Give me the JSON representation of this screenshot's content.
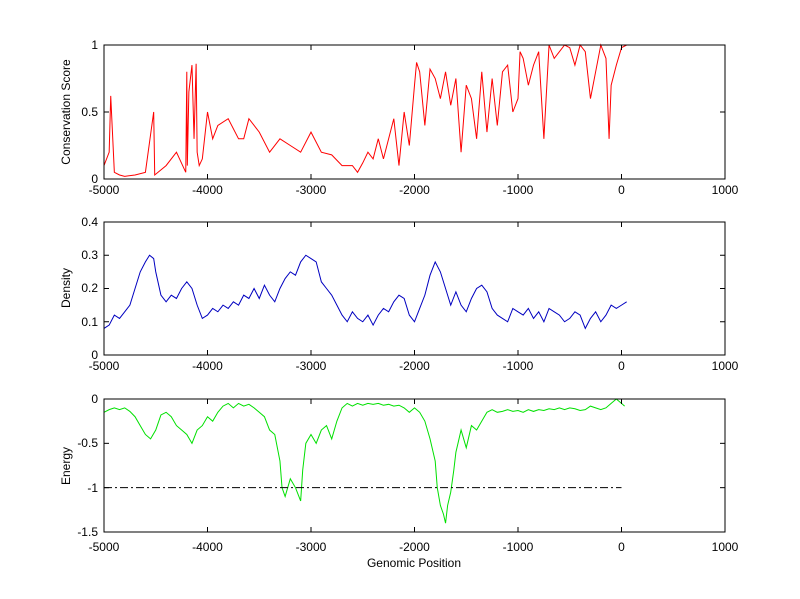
{
  "chart_data": [
    {
      "type": "line",
      "title": "",
      "xlabel": "",
      "ylabel": "Conservation Score",
      "xlim": [
        -5000,
        1000
      ],
      "ylim": [
        0,
        1
      ],
      "xticks": [
        -5000,
        -4000,
        -3000,
        -2000,
        -1000,
        0,
        1000
      ],
      "yticks": [
        0,
        0.5,
        1
      ],
      "xtick_labels": [
        "-5000",
        "-4000",
        "-3000",
        "-2000",
        "-1000",
        "0",
        "1000"
      ],
      "ytick_labels": [
        "0",
        "0.5",
        "1"
      ],
      "grid": false,
      "series": [
        {
          "color": "#ff0000",
          "x": [
            -5000,
            -4950,
            -4935,
            -4900,
            -4850,
            -4800,
            -4700,
            -4600,
            -4520,
            -4510,
            -4400,
            -4300,
            -4210,
            -4200,
            -4195,
            -4180,
            -4150,
            -4130,
            -4110,
            -4100,
            -4080,
            -4050,
            -4000,
            -3950,
            -3900,
            -3800,
            -3700,
            -3650,
            -3600,
            -3500,
            -3400,
            -3300,
            -3200,
            -3100,
            -3000,
            -2900,
            -2800,
            -2700,
            -2600,
            -2550,
            -2500,
            -2450,
            -2400,
            -2350,
            -2300,
            -2250,
            -2200,
            -2150,
            -2100,
            -2050,
            -2000,
            -1980,
            -1950,
            -1900,
            -1850,
            -1800,
            -1750,
            -1700,
            -1650,
            -1600,
            -1550,
            -1500,
            -1450,
            -1400,
            -1350,
            -1300,
            -1250,
            -1200,
            -1150,
            -1100,
            -1050,
            -1000,
            -980,
            -950,
            -900,
            -850,
            -800,
            -750,
            -700,
            -650,
            -600,
            -550,
            -500,
            -450,
            -400,
            -350,
            -300,
            -250,
            -200,
            -150,
            -120,
            -100,
            -50,
            0,
            50
          ],
          "y": [
            0.1,
            0.2,
            0.62,
            0.05,
            0.03,
            0.02,
            0.03,
            0.05,
            0.5,
            0.03,
            0.1,
            0.2,
            0.05,
            0.8,
            0.1,
            0.65,
            0.85,
            0.3,
            0.86,
            0.2,
            0.1,
            0.15,
            0.5,
            0.3,
            0.4,
            0.45,
            0.3,
            0.3,
            0.45,
            0.35,
            0.2,
            0.3,
            0.25,
            0.2,
            0.35,
            0.2,
            0.18,
            0.1,
            0.1,
            0.05,
            0.12,
            0.2,
            0.15,
            0.3,
            0.15,
            0.3,
            0.45,
            0.1,
            0.5,
            0.25,
            0.7,
            0.87,
            0.8,
            0.4,
            0.82,
            0.75,
            0.6,
            0.8,
            0.55,
            0.75,
            0.2,
            0.7,
            0.6,
            0.3,
            0.8,
            0.35,
            0.75,
            0.4,
            0.8,
            0.85,
            0.5,
            0.6,
            0.95,
            0.9,
            0.7,
            0.85,
            0.95,
            0.3,
            1.0,
            0.9,
            0.95,
            1.0,
            0.98,
            0.85,
            1.0,
            0.95,
            0.6,
            0.8,
            1.0,
            0.9,
            0.3,
            0.7,
            0.85,
            0.98,
            1.0
          ]
        }
      ]
    },
    {
      "type": "line",
      "title": "",
      "xlabel": "",
      "ylabel": "Density",
      "xlim": [
        -5000,
        1000
      ],
      "ylim": [
        0,
        0.4
      ],
      "xticks": [
        -5000,
        -4000,
        -3000,
        -2000,
        -1000,
        0,
        1000
      ],
      "yticks": [
        0,
        0.1,
        0.2,
        0.3,
        0.4
      ],
      "xtick_labels": [
        "-5000",
        "-4000",
        "-3000",
        "-2000",
        "-1000",
        "0",
        "1000"
      ],
      "ytick_labels": [
        "0",
        "0.1",
        "0.2",
        "0.3",
        "0.4"
      ],
      "grid": false,
      "series": [
        {
          "color": "#0000c0",
          "x": [
            -5000,
            -4950,
            -4900,
            -4850,
            -4800,
            -4750,
            -4700,
            -4650,
            -4600,
            -4560,
            -4520,
            -4500,
            -4450,
            -4400,
            -4350,
            -4300,
            -4250,
            -4200,
            -4150,
            -4100,
            -4050,
            -4000,
            -3950,
            -3900,
            -3850,
            -3800,
            -3750,
            -3700,
            -3650,
            -3600,
            -3550,
            -3500,
            -3450,
            -3400,
            -3350,
            -3300,
            -3250,
            -3200,
            -3150,
            -3100,
            -3050,
            -3000,
            -2950,
            -2900,
            -2850,
            -2800,
            -2750,
            -2700,
            -2650,
            -2600,
            -2550,
            -2500,
            -2450,
            -2400,
            -2350,
            -2300,
            -2250,
            -2200,
            -2150,
            -2100,
            -2050,
            -2000,
            -1950,
            -1900,
            -1850,
            -1800,
            -1750,
            -1700,
            -1650,
            -1600,
            -1550,
            -1500,
            -1450,
            -1400,
            -1350,
            -1300,
            -1250,
            -1200,
            -1150,
            -1100,
            -1050,
            -1000,
            -950,
            -900,
            -850,
            -800,
            -750,
            -700,
            -650,
            -600,
            -550,
            -500,
            -450,
            -400,
            -350,
            -300,
            -250,
            -200,
            -150,
            -100,
            -50,
            0,
            50
          ],
          "y": [
            0.08,
            0.09,
            0.12,
            0.11,
            0.13,
            0.15,
            0.2,
            0.25,
            0.28,
            0.3,
            0.29,
            0.25,
            0.18,
            0.16,
            0.18,
            0.17,
            0.2,
            0.22,
            0.2,
            0.15,
            0.11,
            0.12,
            0.14,
            0.13,
            0.15,
            0.14,
            0.16,
            0.15,
            0.18,
            0.17,
            0.2,
            0.17,
            0.21,
            0.18,
            0.16,
            0.2,
            0.23,
            0.25,
            0.24,
            0.28,
            0.3,
            0.29,
            0.28,
            0.22,
            0.2,
            0.18,
            0.15,
            0.12,
            0.1,
            0.13,
            0.11,
            0.1,
            0.12,
            0.09,
            0.12,
            0.14,
            0.13,
            0.16,
            0.18,
            0.17,
            0.12,
            0.1,
            0.14,
            0.18,
            0.24,
            0.28,
            0.25,
            0.2,
            0.15,
            0.19,
            0.15,
            0.13,
            0.17,
            0.2,
            0.21,
            0.19,
            0.14,
            0.12,
            0.11,
            0.1,
            0.14,
            0.13,
            0.12,
            0.14,
            0.11,
            0.13,
            0.1,
            0.14,
            0.13,
            0.12,
            0.1,
            0.11,
            0.13,
            0.12,
            0.08,
            0.11,
            0.13,
            0.1,
            0.12,
            0.15,
            0.14,
            0.15,
            0.16
          ]
        }
      ]
    },
    {
      "type": "line",
      "title": "",
      "xlabel": "Genomic Position",
      "ylabel": "Energy",
      "xlim": [
        -5000,
        1000
      ],
      "ylim": [
        -1.5,
        0
      ],
      "xticks": [
        -5000,
        -4000,
        -3000,
        -2000,
        -1000,
        0,
        1000
      ],
      "yticks": [
        -1.5,
        -1,
        -0.5,
        0
      ],
      "xtick_labels": [
        "-5000",
        "-4000",
        "-3000",
        "-2000",
        "-1000",
        "0",
        "1000"
      ],
      "ytick_labels": [
        "-1.5",
        "-1",
        "-0.5",
        "0"
      ],
      "grid": false,
      "series": [
        {
          "color": "#00e000",
          "x": [
            -5000,
            -4950,
            -4900,
            -4850,
            -4800,
            -4750,
            -4700,
            -4650,
            -4600,
            -4550,
            -4500,
            -4450,
            -4400,
            -4350,
            -4300,
            -4250,
            -4200,
            -4150,
            -4100,
            -4050,
            -4000,
            -3950,
            -3900,
            -3850,
            -3800,
            -3750,
            -3700,
            -3650,
            -3600,
            -3550,
            -3500,
            -3450,
            -3400,
            -3350,
            -3300,
            -3280,
            -3250,
            -3200,
            -3150,
            -3100,
            -3080,
            -3050,
            -3000,
            -2950,
            -2900,
            -2850,
            -2800,
            -2750,
            -2700,
            -2650,
            -2600,
            -2550,
            -2500,
            -2450,
            -2400,
            -2350,
            -2300,
            -2250,
            -2200,
            -2150,
            -2100,
            -2050,
            -2000,
            -1950,
            -1900,
            -1850,
            -1800,
            -1780,
            -1750,
            -1720,
            -1700,
            -1680,
            -1650,
            -1620,
            -1600,
            -1580,
            -1550,
            -1500,
            -1450,
            -1400,
            -1350,
            -1300,
            -1250,
            -1200,
            -1150,
            -1100,
            -1050,
            -1000,
            -950,
            -900,
            -850,
            -800,
            -750,
            -700,
            -650,
            -600,
            -550,
            -500,
            -450,
            -400,
            -350,
            -300,
            -250,
            -200,
            -150,
            -100,
            -50,
            0,
            30
          ],
          "y": [
            -0.15,
            -0.12,
            -0.1,
            -0.12,
            -0.1,
            -0.14,
            -0.2,
            -0.3,
            -0.4,
            -0.45,
            -0.35,
            -0.18,
            -0.15,
            -0.2,
            -0.3,
            -0.35,
            -0.4,
            -0.5,
            -0.35,
            -0.3,
            -0.2,
            -0.25,
            -0.15,
            -0.08,
            -0.05,
            -0.1,
            -0.05,
            -0.08,
            -0.06,
            -0.1,
            -0.15,
            -0.2,
            -0.35,
            -0.4,
            -0.7,
            -1.0,
            -1.1,
            -0.9,
            -1.0,
            -1.15,
            -0.8,
            -0.5,
            -0.4,
            -0.5,
            -0.35,
            -0.3,
            -0.45,
            -0.25,
            -0.1,
            -0.05,
            -0.08,
            -0.05,
            -0.07,
            -0.05,
            -0.06,
            -0.05,
            -0.07,
            -0.06,
            -0.08,
            -0.07,
            -0.1,
            -0.15,
            -0.1,
            -0.15,
            -0.25,
            -0.45,
            -0.7,
            -1.0,
            -1.2,
            -1.3,
            -1.4,
            -1.2,
            -1.05,
            -0.8,
            -0.6,
            -0.5,
            -0.35,
            -0.55,
            -0.3,
            -0.35,
            -0.25,
            -0.15,
            -0.12,
            -0.15,
            -0.14,
            -0.12,
            -0.14,
            -0.13,
            -0.15,
            -0.12,
            -0.14,
            -0.12,
            -0.13,
            -0.11,
            -0.12,
            -0.1,
            -0.12,
            -0.1,
            -0.11,
            -0.13,
            -0.12,
            -0.08,
            -0.1,
            -0.12,
            -0.1,
            -0.05,
            0.0,
            -0.05,
            -0.08
          ]
        },
        {
          "color": "#000000",
          "style": "dash-dot",
          "x": [
            -5000,
            0
          ],
          "y": [
            -1,
            -1
          ]
        }
      ]
    }
  ]
}
